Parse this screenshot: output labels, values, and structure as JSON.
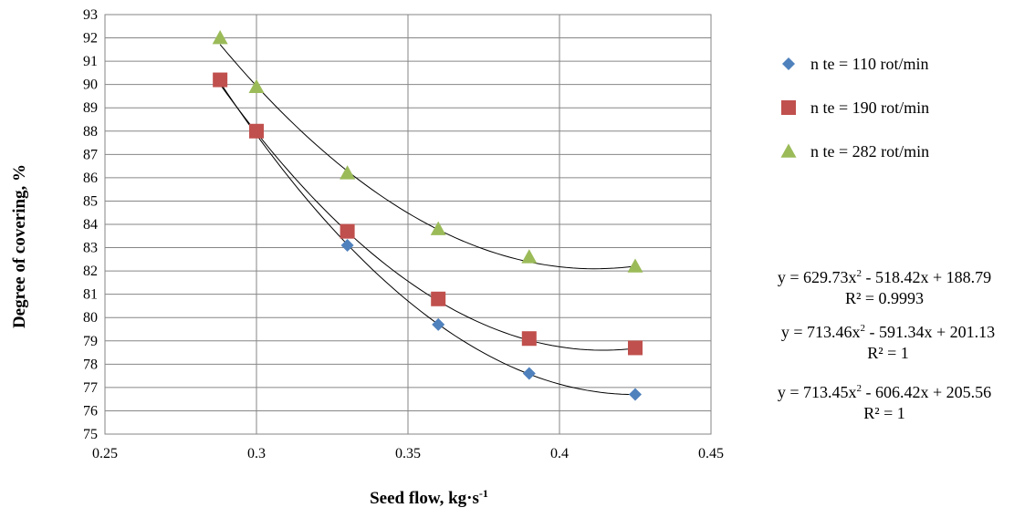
{
  "chart_data": {
    "type": "scatter",
    "xlabel": "Seed flow, kg·s",
    "xlabel_sup": "-1",
    "ylabel": "Degree of covering, %",
    "xlim": [
      0.25,
      0.45
    ],
    "ylim": [
      75,
      93
    ],
    "xticks": [
      "0.25",
      "0.3",
      "0.35",
      "0.4",
      "0.45"
    ],
    "yticks": [
      "75",
      "76",
      "77",
      "78",
      "79",
      "80",
      "81",
      "82",
      "83",
      "84",
      "85",
      "86",
      "87",
      "88",
      "89",
      "90",
      "91",
      "92",
      "93"
    ],
    "grid": true,
    "legend_position": "right",
    "series": [
      {
        "name": "n te = 110 rot/min",
        "marker": "diamond",
        "color": "#4F81BD",
        "x": [
          0.288,
          0.3,
          0.33,
          0.36,
          0.39,
          0.425
        ],
        "y": [
          90.2,
          88.0,
          83.1,
          79.7,
          77.6,
          76.7
        ],
        "trendline": [
          713.45,
          -606.42,
          205.56
        ]
      },
      {
        "name": "n te = 190 rot/min",
        "marker": "square",
        "color": "#C0504D",
        "x": [
          0.288,
          0.3,
          0.33,
          0.36,
          0.39,
          0.425
        ],
        "y": [
          90.2,
          88.0,
          83.7,
          80.8,
          79.1,
          78.7
        ],
        "trendline": [
          713.46,
          -591.34,
          201.13
        ]
      },
      {
        "name": "n te = 282 rot/min",
        "marker": "triangle",
        "color": "#9BBB59",
        "x": [
          0.288,
          0.3,
          0.33,
          0.36,
          0.39,
          0.425
        ],
        "y": [
          92.0,
          89.9,
          86.2,
          83.8,
          82.6,
          82.2
        ],
        "trendline": [
          629.73,
          -518.42,
          188.79
        ]
      }
    ],
    "equations": [
      {
        "eq_a": "y = 629.73x",
        "eq_b": " - 518.42x + 188.79",
        "sup": "2",
        "r2": "R² = 0.9993"
      },
      {
        "eq_a": "y = 713.46x",
        "eq_b": " - 591.34x + 201.13",
        "sup": "2",
        "r2": "R² = 1"
      },
      {
        "eq_a": "y = 713.45x",
        "eq_b": " - 606.42x + 205.56",
        "sup": "2",
        "r2": "R² = 1"
      }
    ]
  }
}
